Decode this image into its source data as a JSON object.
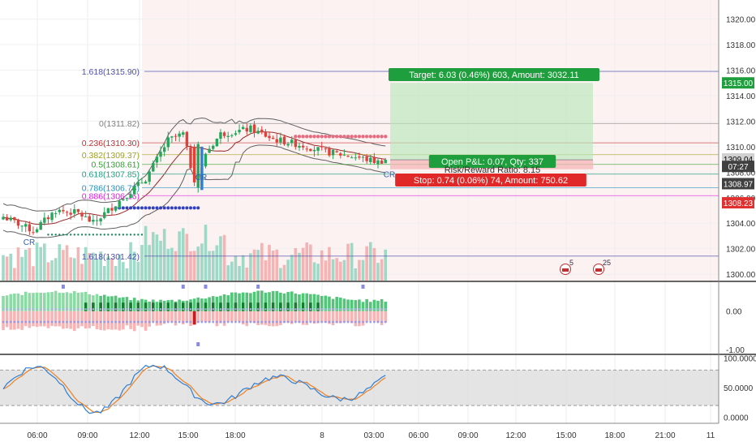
{
  "chart_data": {
    "type": "candlestick",
    "main_pane": {
      "price_range": [
        1299.5,
        1321.5
      ],
      "y_ticks": [
        1300.0,
        1302.0,
        1304.0,
        1306.0,
        1308.0,
        1310.0,
        1312.0,
        1314.0,
        1316.0,
        1318.0,
        1320.0
      ],
      "y_tick_labels": [
        "1300.00",
        "1302.00",
        "1304.00",
        "1306.00",
        "1308.00",
        "1310.00",
        "1312.00",
        "1314.00",
        "1316.00",
        "1318.00",
        "1320.00"
      ],
      "fib_levels": [
        {
          "label": "1.618(1315.90)",
          "price": 1315.9,
          "color": "#5050b0"
        },
        {
          "label": "0(1311.82)",
          "price": 1311.82,
          "color": "#808080"
        },
        {
          "label": "0.236(1310.30)",
          "price": 1310.3,
          "color": "#c03030"
        },
        {
          "label": "0.382(1309.37)",
          "price": 1309.37,
          "color": "#a0a020"
        },
        {
          "label": "0.5(1308.61)",
          "price": 1308.61,
          "color": "#30a030"
        },
        {
          "label": "0.618(1307.85)",
          "price": 1307.85,
          "color": "#20a080"
        },
        {
          "label": "0.786(1306.78)",
          "price": 1306.78,
          "color": "#2090c0"
        },
        {
          "label": "0.886(1306.16)",
          "price": 1306.16,
          "color": "#e020e0"
        },
        {
          "label": "1.618(1301.42)",
          "price": 1301.42,
          "color": "#5050b0"
        }
      ],
      "price_badges": [
        {
          "text": "1315.00",
          "price": 1315.0,
          "bg": "#1e9e3c",
          "fg": "#ffffff"
        },
        {
          "text": "1309.04",
          "price": 1309.04,
          "bg": "#d0d0d0",
          "fg": "#000000"
        },
        {
          "text": "07:27",
          "price": 1308.45,
          "bg": "#404040",
          "fg": "#ffffff"
        },
        {
          "text": "1308.97",
          "price": 1307.1,
          "bg": "#404040",
          "fg": "#ffffff"
        },
        {
          "text": "1308.23",
          "price": 1305.6,
          "bg": "#e03030",
          "fg": "#ffffff"
        }
      ],
      "position": {
        "target_label": "Target: 6.03 (0.46%) 603, Amount: 3032.11",
        "pnl_label": "Open P&L: 0.07, Qty: 337",
        "ratio_label": "Risk/Reward Ratio: 8.15",
        "stop_label": "Stop: 0.74 (0.06%) 74, Amount: 750.62",
        "entry": 1308.97,
        "target": 1315.0,
        "stop": 1308.23
      },
      "annotations": [
        "CR",
        "CR",
        "CR"
      ],
      "event_markers": [
        "5",
        "25"
      ]
    },
    "oscillator_pane": {
      "range": [
        -1.1,
        0.75
      ],
      "y_ticks": [
        0.0,
        -1.0
      ],
      "y_tick_labels": [
        "0.00",
        "-1.00"
      ]
    },
    "stoch_pane": {
      "range": [
        -10,
        105
      ],
      "bands": [
        20,
        80
      ],
      "y_ticks": [
        0,
        50,
        100
      ],
      "y_tick_labels": [
        "0.0000",
        "50.0000",
        "100.0000"
      ]
    },
    "x_ticks": [
      "06:00",
      "09:00",
      "12:00",
      "15:00",
      "18:00",
      "8",
      "03:00",
      "06:00",
      "09:00",
      "12:00",
      "15:00",
      "18:00",
      "21:00",
      "11"
    ],
    "colors": {
      "up": "#26a65b",
      "down": "#e0403a",
      "fast_line": "#2d7fd8",
      "slow_line": "#f08020",
      "bollinger": "#606060"
    }
  }
}
